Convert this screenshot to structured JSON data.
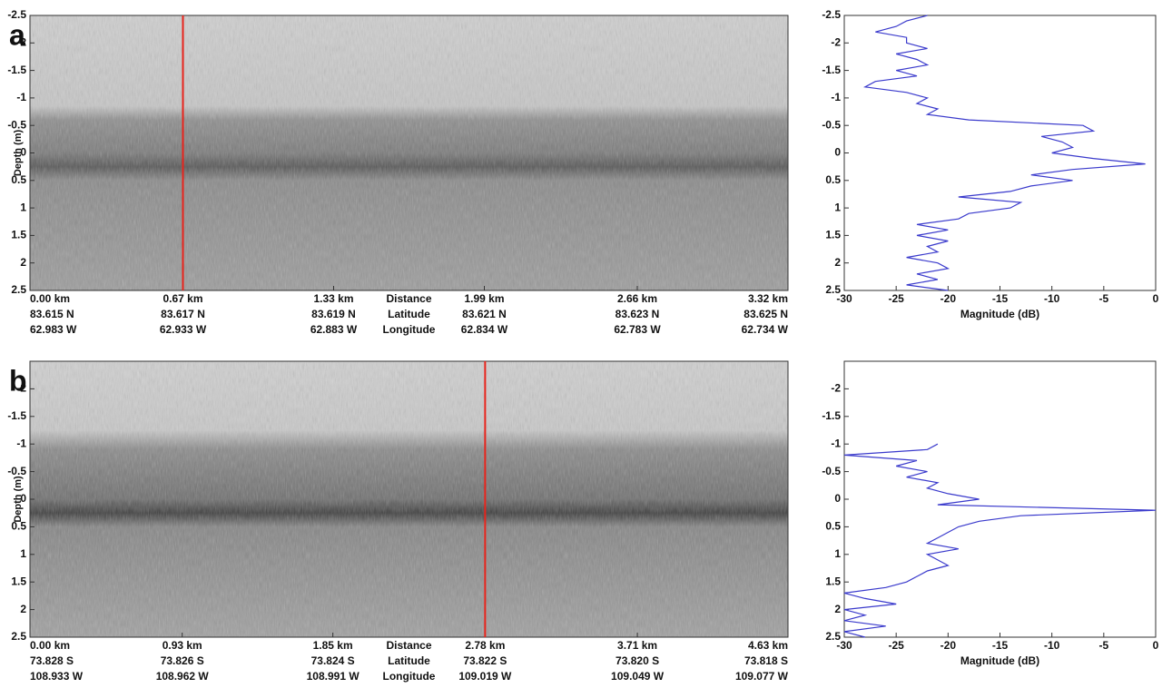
{
  "chart_data": [
    {
      "type": "echogram",
      "panel": "a",
      "ylabel": "Depth (m)",
      "ylim": [
        -2.5,
        2.5
      ],
      "yticks": [
        -2.5,
        -2,
        -1.5,
        -1,
        -0.5,
        0,
        0.5,
        1,
        1.5,
        2,
        2.5
      ],
      "xlim": [
        0,
        3.32
      ],
      "xticks": [
        {
          "value": 0,
          "label": "0.00 km"
        },
        {
          "value": 0.67,
          "label": "0.67 km"
        },
        {
          "value": 1.33,
          "label": "1.33 km"
        },
        {
          "value": 1.99,
          "label": "1.99 km"
        },
        {
          "value": 2.66,
          "label": "2.66 km"
        },
        {
          "value": 3.32,
          "label": "3.32 km"
        }
      ],
      "latitudes": [
        "83.615 N",
        "83.617 N",
        "83.619 N",
        "83.621 N",
        "83.623 N",
        "83.625 N"
      ],
      "longitudes": [
        "62.983 W",
        "62.933 W",
        "62.883 W",
        "62.834 W",
        "62.783 W",
        "62.734 W"
      ],
      "row_labels": [
        "Distance",
        "Latitude",
        "Longitude"
      ],
      "cursor": 0.67,
      "cursor_color": "#e8241c"
    },
    {
      "type": "line",
      "xlabel": "Magnitude (dB)",
      "xlim": [
        -30,
        0
      ],
      "xticks": [
        -30,
        -25,
        -20,
        -15,
        -10,
        -5,
        0
      ],
      "ylim": [
        -2.5,
        2.5
      ],
      "yticks": [
        -2.5,
        -2,
        -1.5,
        -1,
        -0.5,
        0,
        0.5,
        1,
        1.5,
        2,
        2.5
      ],
      "series": [
        {
          "color": "#3a3acc",
          "x": [
            -2.5,
            -2.4,
            -2.3,
            -2.2,
            -2.1,
            -2.0,
            -1.9,
            -1.8,
            -1.7,
            -1.6,
            -1.5,
            -1.4,
            -1.3,
            -1.2,
            -1.1,
            -1.0,
            -0.9,
            -0.8,
            -0.7,
            -0.6,
            -0.5,
            -0.4,
            -0.3,
            -0.2,
            -0.1,
            0,
            0.1,
            0.2,
            0.3,
            0.4,
            0.5,
            0.6,
            0.7,
            0.8,
            0.9,
            1.0,
            1.1,
            1.2,
            1.3,
            1.4,
            1.5,
            1.6,
            1.7,
            1.8,
            1.9,
            2.0,
            2.1,
            2.2,
            2.3,
            2.4,
            2.5
          ],
          "values": [
            -22,
            -24,
            -25,
            -27,
            -24,
            -24,
            -22,
            -25,
            -23,
            -22,
            -25,
            -23,
            -27,
            -28,
            -24,
            -22,
            -23,
            -21,
            -22,
            -18,
            -7,
            -6,
            -11,
            -9,
            -8,
            -10,
            -6,
            -1,
            -8,
            -12,
            -8,
            -12,
            -14,
            -19,
            -13,
            -14,
            -18,
            -19,
            -23,
            -20,
            -23,
            -20,
            -22,
            -21,
            -24,
            -21,
            -20,
            -23,
            -21,
            -24,
            -20
          ]
        }
      ]
    },
    {
      "type": "echogram",
      "panel": "b",
      "ylabel": "Depth (m)",
      "ylim": [
        -2.5,
        2.5
      ],
      "yticks": [
        -2,
        -1.5,
        -1,
        -0.5,
        0,
        0.5,
        1,
        1.5,
        2,
        2.5
      ],
      "xlim": [
        0,
        4.63
      ],
      "xticks": [
        {
          "value": 0,
          "label": "0.00 km"
        },
        {
          "value": 0.93,
          "label": "0.93 km"
        },
        {
          "value": 1.85,
          "label": "1.85 km"
        },
        {
          "value": 2.78,
          "label": "2.78 km"
        },
        {
          "value": 3.71,
          "label": "3.71 km"
        },
        {
          "value": 4.63,
          "label": "4.63 km"
        }
      ],
      "latitudes": [
        "73.828 S",
        "73.826 S",
        "73.824 S",
        "73.822 S",
        "73.820 S",
        "73.818 S"
      ],
      "longitudes": [
        "108.933 W",
        "108.962 W",
        "108.991 W",
        "109.019 W",
        "109.049 W",
        "109.077 W"
      ],
      "row_labels": [
        "Distance",
        "Latitude",
        "Longitude"
      ],
      "cursor": 2.78,
      "cursor_color": "#e8241c"
    },
    {
      "type": "line",
      "xlabel": "Magnitude (dB)",
      "xlim": [
        -30,
        0
      ],
      "xticks": [
        -30,
        -25,
        -20,
        -15,
        -10,
        -5,
        0
      ],
      "ylim": [
        -2.5,
        2.5
      ],
      "yticks": [
        -2,
        -1.5,
        -1,
        -0.5,
        0,
        0.5,
        1,
        1.5,
        2,
        2.5
      ],
      "series": [
        {
          "color": "#3a3acc",
          "x": [
            -1.0,
            -0.9,
            -0.8,
            -0.7,
            -0.6,
            -0.5,
            -0.4,
            -0.3,
            -0.2,
            -0.1,
            0,
            0.1,
            0.2,
            0.3,
            0.4,
            0.5,
            0.6,
            0.7,
            0.8,
            0.9,
            1.0,
            1.1,
            1.2,
            1.3,
            1.4,
            1.5,
            1.6,
            1.7,
            1.8,
            1.9,
            2.0,
            2.1,
            2.2,
            2.3,
            2.4,
            2.5
          ],
          "values": [
            -21,
            -22,
            -30,
            -23,
            -25,
            -22,
            -24,
            -21,
            -22,
            -20,
            -17,
            -21,
            0,
            -13,
            -17,
            -19,
            -20,
            -21,
            -22,
            -19,
            -22,
            -21,
            -20,
            -22,
            -23,
            -24,
            -26,
            -30,
            -28,
            -25,
            -30,
            -28,
            -30,
            -26,
            -30,
            -28
          ]
        }
      ]
    }
  ]
}
